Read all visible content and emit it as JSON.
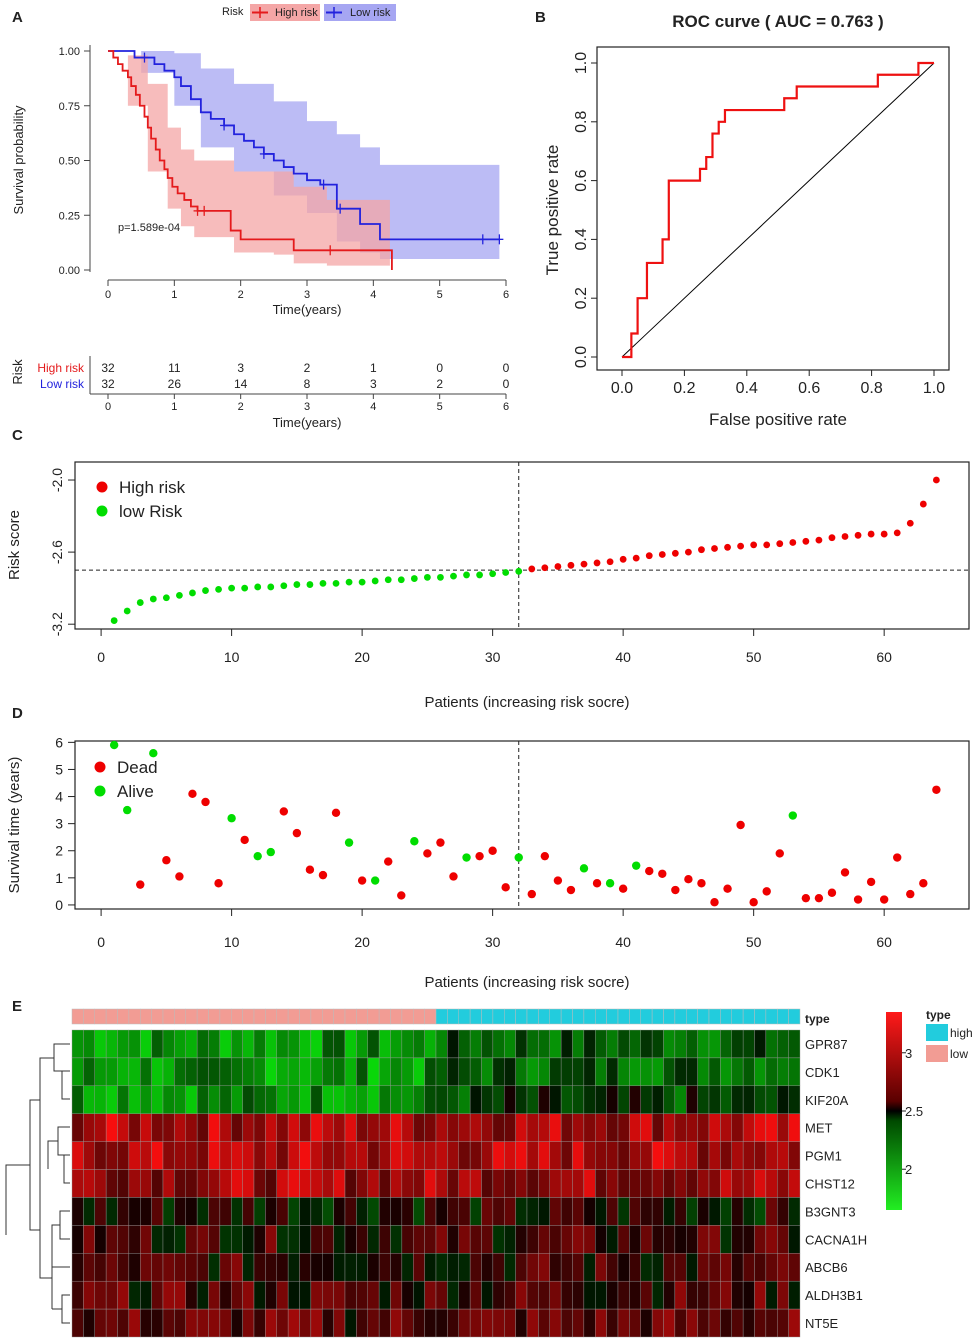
{
  "panel_labels": {
    "a": "A",
    "b": "B",
    "c": "C",
    "d": "D",
    "e": "E"
  },
  "colors": {
    "high": "#e41a1c",
    "low": "#2222dd",
    "high_fill": "#f4a6a6",
    "low_fill": "#a6a6f2",
    "green": "#00dd00",
    "red": "#ee0000",
    "type_high": "#22ccdd",
    "type_low": "#f29c94"
  },
  "chart_data": [
    {
      "id": "km",
      "type": "line",
      "legend": {
        "title": "Risk",
        "items": [
          "High risk",
          "Low risk"
        ]
      },
      "xlabel": "Time(years)",
      "ylabel": "Survival probability",
      "xlim": [
        0,
        6
      ],
      "ylim": [
        0,
        1
      ],
      "xticks": [
        "0",
        "1",
        "2",
        "3",
        "4",
        "5",
        "6"
      ],
      "yticks": [
        "0.00",
        "0.25",
        "0.50",
        "0.75",
        "1.00"
      ],
      "pvalue": "p=1.589e-04",
      "series": [
        {
          "name": "High risk",
          "points": [
            [
              0,
              1
            ],
            [
              0.08,
              0.97
            ],
            [
              0.15,
              0.94
            ],
            [
              0.22,
              0.91
            ],
            [
              0.3,
              0.88
            ],
            [
              0.35,
              0.84
            ],
            [
              0.42,
              0.8
            ],
            [
              0.48,
              0.75
            ],
            [
              0.55,
              0.7
            ],
            [
              0.6,
              0.65
            ],
            [
              0.65,
              0.6
            ],
            [
              0.72,
              0.55
            ],
            [
              0.78,
              0.5
            ],
            [
              0.85,
              0.46
            ],
            [
              0.9,
              0.42
            ],
            [
              0.97,
              0.38
            ],
            [
              1.05,
              0.35
            ],
            [
              1.15,
              0.32
            ],
            [
              1.25,
              0.29
            ],
            [
              1.35,
              0.27
            ],
            [
              1.5,
              0.27
            ],
            [
              1.8,
              0.27
            ],
            [
              1.85,
              0.18
            ],
            [
              2.0,
              0.14
            ],
            [
              2.5,
              0.14
            ],
            [
              2.8,
              0.09
            ],
            [
              4.25,
              0.09
            ],
            [
              4.28,
              0.0
            ]
          ],
          "upper": [
            [
              0,
              1
            ],
            [
              0.3,
              0.98
            ],
            [
              0.6,
              0.85
            ],
            [
              0.9,
              0.65
            ],
            [
              1.1,
              0.55
            ],
            [
              1.3,
              0.5
            ],
            [
              1.8,
              0.5
            ],
            [
              1.9,
              0.45
            ],
            [
              2.5,
              0.45
            ],
            [
              2.8,
              0.38
            ],
            [
              3.3,
              0.32
            ],
            [
              4.25,
              0.32
            ]
          ],
          "lower": [
            [
              0,
              1
            ],
            [
              0.3,
              0.75
            ],
            [
              0.6,
              0.45
            ],
            [
              0.9,
              0.28
            ],
            [
              1.1,
              0.2
            ],
            [
              1.3,
              0.15
            ],
            [
              1.8,
              0.15
            ],
            [
              1.9,
              0.08
            ],
            [
              2.5,
              0.07
            ],
            [
              2.8,
              0.03
            ],
            [
              3.3,
              0.02
            ],
            [
              4.25,
              0.02
            ]
          ]
        },
        {
          "name": "Low risk",
          "points": [
            [
              0,
              1
            ],
            [
              0.3,
              1
            ],
            [
              0.4,
              0.97
            ],
            [
              0.6,
              0.97
            ],
            [
              0.7,
              0.94
            ],
            [
              0.85,
              0.91
            ],
            [
              1.0,
              0.88
            ],
            [
              1.1,
              0.84
            ],
            [
              1.25,
              0.78
            ],
            [
              1.4,
              0.72
            ],
            [
              1.55,
              0.69
            ],
            [
              1.75,
              0.66
            ],
            [
              1.9,
              0.62
            ],
            [
              2.05,
              0.59
            ],
            [
              2.2,
              0.56
            ],
            [
              2.35,
              0.53
            ],
            [
              2.5,
              0.5
            ],
            [
              2.65,
              0.47
            ],
            [
              2.8,
              0.44
            ],
            [
              3.0,
              0.41
            ],
            [
              3.2,
              0.39
            ],
            [
              3.35,
              0.39
            ],
            [
              3.45,
              0.28
            ],
            [
              3.65,
              0.28
            ],
            [
              3.8,
              0.21
            ],
            [
              4.1,
              0.14
            ],
            [
              4.5,
              0.14
            ],
            [
              5.9,
              0.14
            ]
          ],
          "upper": [
            [
              0,
              1
            ],
            [
              0.5,
              1
            ],
            [
              1.0,
              0.99
            ],
            [
              1.4,
              0.92
            ],
            [
              1.9,
              0.85
            ],
            [
              2.5,
              0.77
            ],
            [
              3.0,
              0.68
            ],
            [
              3.45,
              0.62
            ],
            [
              3.8,
              0.56
            ],
            [
              4.1,
              0.48
            ],
            [
              5.9,
              0.46
            ]
          ],
          "lower": [
            [
              0,
              1
            ],
            [
              0.5,
              0.9
            ],
            [
              1.0,
              0.75
            ],
            [
              1.4,
              0.56
            ],
            [
              1.9,
              0.45
            ],
            [
              2.5,
              0.34
            ],
            [
              3.0,
              0.26
            ],
            [
              3.45,
              0.13
            ],
            [
              3.8,
              0.08
            ],
            [
              4.1,
              0.05
            ],
            [
              5.9,
              0.04
            ]
          ]
        }
      ],
      "risk_table": {
        "title": "Risk",
        "rows": [
          {
            "label": "High risk",
            "values": [
              "32",
              "11",
              "3",
              "2",
              "1",
              "0",
              "0"
            ]
          },
          {
            "label": "Low risk",
            "values": [
              "32",
              "26",
              "14",
              "8",
              "3",
              "2",
              "0"
            ]
          }
        ],
        "xticks": [
          "0",
          "1",
          "2",
          "3",
          "4",
          "5",
          "6"
        ],
        "xlabel": "Time(years)"
      }
    },
    {
      "id": "roc",
      "type": "line",
      "title": "ROC curve ( AUC = 0.763 )",
      "xlabel": "False positive rate",
      "ylabel": "True positive rate",
      "xlim": [
        0,
        1
      ],
      "ylim": [
        0,
        1
      ],
      "xticks": [
        "0.0",
        "0.2",
        "0.4",
        "0.6",
        "0.8",
        "1.0"
      ],
      "yticks": [
        "0.0",
        "0.2",
        "0.4",
        "0.6",
        "0.8",
        "1.0"
      ],
      "points": [
        [
          0,
          0
        ],
        [
          0.03,
          0.0
        ],
        [
          0.03,
          0.08
        ],
        [
          0.05,
          0.08
        ],
        [
          0.05,
          0.2
        ],
        [
          0.08,
          0.2
        ],
        [
          0.08,
          0.32
        ],
        [
          0.13,
          0.32
        ],
        [
          0.13,
          0.4
        ],
        [
          0.15,
          0.4
        ],
        [
          0.15,
          0.6
        ],
        [
          0.25,
          0.6
        ],
        [
          0.25,
          0.64
        ],
        [
          0.27,
          0.64
        ],
        [
          0.27,
          0.68
        ],
        [
          0.29,
          0.68
        ],
        [
          0.29,
          0.76
        ],
        [
          0.31,
          0.76
        ],
        [
          0.31,
          0.8
        ],
        [
          0.33,
          0.8
        ],
        [
          0.33,
          0.84
        ],
        [
          0.52,
          0.84
        ],
        [
          0.52,
          0.88
        ],
        [
          0.56,
          0.88
        ],
        [
          0.56,
          0.92
        ],
        [
          0.82,
          0.92
        ],
        [
          0.82,
          0.96
        ],
        [
          0.95,
          0.96
        ],
        [
          0.95,
          1
        ],
        [
          1,
          1
        ]
      ]
    },
    {
      "id": "risk",
      "type": "scatter",
      "xlabel": "Patients (increasing risk socre)",
      "ylabel": "Risk score",
      "xlim": [
        -2,
        66.5
      ],
      "ylim": [
        -3.24,
        -1.85
      ],
      "xticks": [
        "0",
        "10",
        "20",
        "30",
        "40",
        "50",
        "60"
      ],
      "yticks": [
        "-3.2",
        "-2.6",
        "-2.0"
      ],
      "legend": [
        "High risk",
        "low Risk"
      ],
      "cutoff": 32,
      "values": [
        -3.17,
        -3.09,
        -3.02,
        -2.99,
        -2.98,
        -2.96,
        -2.94,
        -2.92,
        -2.91,
        -2.9,
        -2.9,
        -2.89,
        -2.89,
        -2.88,
        -2.87,
        -2.87,
        -2.86,
        -2.86,
        -2.85,
        -2.85,
        -2.84,
        -2.83,
        -2.83,
        -2.82,
        -2.81,
        -2.81,
        -2.8,
        -2.79,
        -2.79,
        -2.78,
        -2.77,
        -2.76,
        -2.74,
        -2.73,
        -2.72,
        -2.71,
        -2.7,
        -2.69,
        -2.68,
        -2.66,
        -2.65,
        -2.63,
        -2.62,
        -2.61,
        -2.6,
        -2.58,
        -2.57,
        -2.56,
        -2.55,
        -2.54,
        -2.54,
        -2.53,
        -2.52,
        -2.51,
        -2.5,
        -2.48,
        -2.47,
        -2.46,
        -2.45,
        -2.45,
        -2.44,
        -2.36,
        -2.2,
        -2.0
      ]
    },
    {
      "id": "survival",
      "type": "scatter",
      "xlabel": "Patients (increasing risk socre)",
      "ylabel": "Survival time (years)",
      "xlim": [
        -2,
        66.5
      ],
      "ylim": [
        -0.15,
        6.05
      ],
      "xticks": [
        "0",
        "10",
        "20",
        "30",
        "40",
        "50",
        "60"
      ],
      "yticks": [
        "0",
        "1",
        "2",
        "3",
        "4",
        "5",
        "6"
      ],
      "legend": [
        "Dead",
        "Alive"
      ],
      "cutoff": 32,
      "points": [
        [
          1,
          5.9,
          "A"
        ],
        [
          2,
          3.5,
          "A"
        ],
        [
          3,
          0.75,
          "D"
        ],
        [
          4,
          5.6,
          "A"
        ],
        [
          5,
          1.65,
          "D"
        ],
        [
          6,
          1.05,
          "D"
        ],
        [
          7,
          4.1,
          "D"
        ],
        [
          8,
          3.8,
          "D"
        ],
        [
          9,
          0.8,
          "D"
        ],
        [
          10,
          3.2,
          "A"
        ],
        [
          11,
          2.4,
          "D"
        ],
        [
          12,
          1.8,
          "A"
        ],
        [
          13,
          1.95,
          "A"
        ],
        [
          14,
          3.45,
          "D"
        ],
        [
          15,
          2.65,
          "D"
        ],
        [
          16,
          1.3,
          "D"
        ],
        [
          17,
          1.1,
          "D"
        ],
        [
          18,
          3.4,
          "D"
        ],
        [
          19,
          2.3,
          "A"
        ],
        [
          20,
          0.9,
          "D"
        ],
        [
          21,
          0.9,
          "A"
        ],
        [
          22,
          1.6,
          "D"
        ],
        [
          23,
          0.35,
          "D"
        ],
        [
          24,
          2.35,
          "A"
        ],
        [
          25,
          1.9,
          "D"
        ],
        [
          26,
          2.3,
          "D"
        ],
        [
          27,
          1.05,
          "D"
        ],
        [
          28,
          1.75,
          "A"
        ],
        [
          29,
          1.8,
          "D"
        ],
        [
          30,
          2.0,
          "D"
        ],
        [
          31,
          0.65,
          "D"
        ],
        [
          32,
          1.75,
          "A"
        ],
        [
          33,
          0.4,
          "D"
        ],
        [
          34,
          1.8,
          "D"
        ],
        [
          35,
          0.9,
          "D"
        ],
        [
          36,
          0.55,
          "D"
        ],
        [
          37,
          1.35,
          "A"
        ],
        [
          38,
          0.8,
          "D"
        ],
        [
          39,
          0.8,
          "A"
        ],
        [
          40,
          0.6,
          "D"
        ],
        [
          41,
          1.45,
          "A"
        ],
        [
          42,
          1.25,
          "D"
        ],
        [
          43,
          1.15,
          "D"
        ],
        [
          44,
          0.55,
          "D"
        ],
        [
          45,
          0.95,
          "D"
        ],
        [
          46,
          0.8,
          "D"
        ],
        [
          47,
          0.1,
          "D"
        ],
        [
          48,
          0.6,
          "D"
        ],
        [
          49,
          2.95,
          "D"
        ],
        [
          50,
          0.1,
          "D"
        ],
        [
          51,
          0.5,
          "D"
        ],
        [
          52,
          1.9,
          "D"
        ],
        [
          53,
          3.3,
          "A"
        ],
        [
          54,
          0.25,
          "D"
        ],
        [
          55,
          0.25,
          "D"
        ],
        [
          56,
          0.45,
          "D"
        ],
        [
          57,
          1.2,
          "D"
        ],
        [
          58,
          0.2,
          "D"
        ],
        [
          59,
          0.85,
          "D"
        ],
        [
          60,
          0.2,
          "D"
        ],
        [
          61,
          1.75,
          "D"
        ],
        [
          62,
          0.4,
          "D"
        ],
        [
          63,
          0.8,
          "D"
        ],
        [
          64,
          4.25,
          "D"
        ]
      ]
    },
    {
      "id": "heatmap",
      "type": "heatmap",
      "type_label": "type",
      "genes": [
        "GPR87",
        "CDK1",
        "KIF20A",
        "MET",
        "PGM1",
        "CHST12",
        "B3GNT3",
        "CACNA1H",
        "ABCB6",
        "ALDH3B1",
        "NT5E"
      ],
      "n_low": 32,
      "n_high": 32,
      "legend_title": "type",
      "legend_items": [
        "high",
        "low"
      ],
      "colorbar_ticks": [
        "3",
        "2.5",
        "2"
      ],
      "colorbar_range": [
        1.65,
        3.35
      ],
      "row_means": [
        2.05,
        2.05,
        2.1,
        3.05,
        3.05,
        3.0,
        2.55,
        2.65,
        2.65,
        2.7,
        2.75
      ]
    }
  ]
}
